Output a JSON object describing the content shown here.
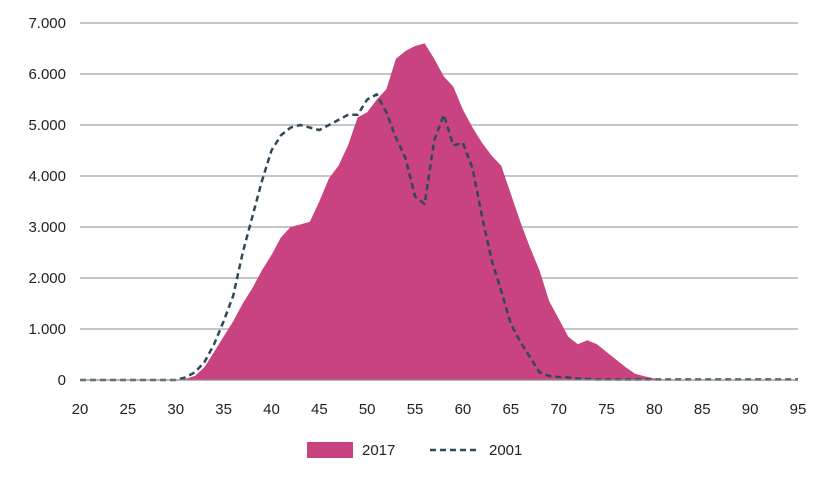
{
  "chart_data": {
    "type": "area",
    "title": "",
    "xlabel": "",
    "ylabel": "",
    "xlim": [
      20,
      95
    ],
    "ylim": [
      0,
      7000
    ],
    "x_ticks": [
      20,
      25,
      30,
      35,
      40,
      45,
      50,
      55,
      60,
      65,
      70,
      75,
      80,
      85,
      90,
      95
    ],
    "y_ticks": [
      0,
      1000,
      2000,
      3000,
      4000,
      5000,
      6000,
      7000
    ],
    "y_tick_labels": [
      "0",
      "1.000",
      "2.000",
      "3.000",
      "4.000",
      "5.000",
      "6.000",
      "7.000"
    ],
    "grid": "horizontal",
    "legend_position": "bottom",
    "x": [
      20,
      21,
      22,
      23,
      24,
      25,
      26,
      27,
      28,
      29,
      30,
      31,
      32,
      33,
      34,
      35,
      36,
      37,
      38,
      39,
      40,
      41,
      42,
      43,
      44,
      45,
      46,
      47,
      48,
      49,
      50,
      51,
      52,
      53,
      54,
      55,
      56,
      57,
      58,
      59,
      60,
      61,
      62,
      63,
      64,
      65,
      66,
      67,
      68,
      69,
      70,
      71,
      72,
      73,
      74,
      75,
      76,
      77,
      78,
      79,
      80,
      81,
      82,
      83,
      84,
      85,
      86,
      87,
      88,
      89,
      90,
      91,
      92,
      93,
      94,
      95
    ],
    "series": [
      {
        "name": "2017",
        "style": "area",
        "color": "#c8437f",
        "values": [
          0,
          0,
          0,
          0,
          0,
          0,
          0,
          0,
          0,
          0,
          0,
          20,
          80,
          250,
          550,
          850,
          1150,
          1500,
          1800,
          2150,
          2450,
          2800,
          3000,
          3050,
          3100,
          3500,
          3950,
          4200,
          4600,
          5150,
          5250,
          5500,
          5700,
          6300,
          6450,
          6550,
          6600,
          6300,
          5950,
          5750,
          5300,
          4950,
          4650,
          4400,
          4200,
          3650,
          3100,
          2600,
          2150,
          1550,
          1200,
          850,
          700,
          780,
          700,
          550,
          400,
          250,
          120,
          70,
          30,
          10,
          5,
          0,
          0,
          0,
          0,
          0,
          0,
          0,
          0,
          0,
          0,
          0,
          0,
          0
        ]
      },
      {
        "name": "2001",
        "style": "dashed-line",
        "color": "#2c4a57",
        "values": [
          0,
          0,
          0,
          0,
          0,
          0,
          0,
          0,
          0,
          0,
          0,
          50,
          150,
          350,
          700,
          1150,
          1650,
          2500,
          3200,
          3900,
          4500,
          4800,
          4950,
          5000,
          4950,
          4900,
          5000,
          5100,
          5200,
          5200,
          5500,
          5600,
          5250,
          4750,
          4350,
          3600,
          3450,
          4700,
          5200,
          4600,
          4650,
          4150,
          3200,
          2350,
          1750,
          1100,
          750,
          450,
          150,
          80,
          60,
          50,
          30,
          20,
          10,
          10,
          10,
          10,
          10,
          10,
          10,
          10,
          10,
          10,
          10,
          10,
          10,
          10,
          10,
          10,
          10,
          10,
          10,
          10,
          10,
          10
        ]
      }
    ]
  }
}
